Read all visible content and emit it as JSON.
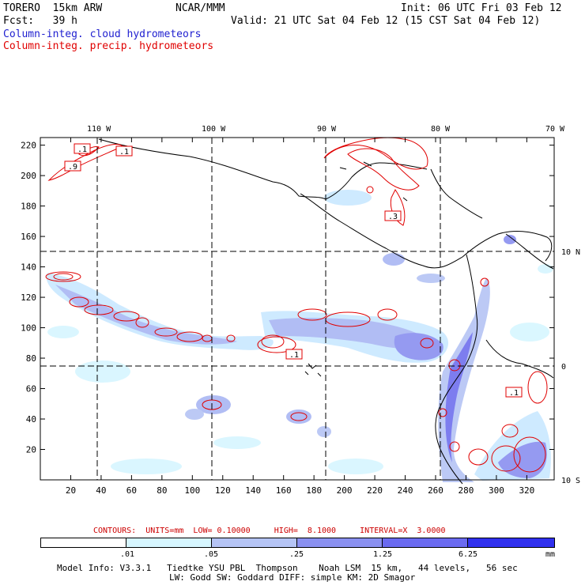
{
  "header": {
    "model": "TORERO  15km ARW",
    "org": "NCAR/MMM",
    "init": "Init: 06 UTC Fri 03 Feb 12",
    "fcst": "Fcst:   39 h",
    "valid": "Valid: 21 UTC Sat 04 Feb 12 (15 CST Sat 04 Feb 12)",
    "field_cloud": "Column-integ. cloud hydrometeors",
    "field_precip": "Column-integ. precip. hydrometeors"
  },
  "axes": {
    "lon_labels": [
      "110 W",
      "100 W",
      "90 W",
      "80 W",
      "70 W"
    ],
    "lat_labels": [
      "10 N",
      "0",
      "10 S"
    ],
    "x_ticks": [
      "20",
      "40",
      "60",
      "80",
      "100",
      "120",
      "140",
      "160",
      "180",
      "200",
      "220",
      "240",
      "260",
      "280",
      "300",
      "320"
    ],
    "y_ticks": [
      "20",
      "40",
      "60",
      "80",
      "100",
      "120",
      "140",
      "160",
      "180",
      "200",
      "220"
    ]
  },
  "contour_labels": [
    ".1",
    ".1",
    ".9",
    ".3",
    ".1",
    ".1"
  ],
  "contour_info": "CONTOURS:  UNITS=mm  LOW= 0.10000     HIGH=  8.1000     INTERVAL=X  3.0000",
  "colorbar": {
    "labels": [
      ".01",
      ".05",
      ".25",
      "1.25",
      "6.25",
      "mm"
    ],
    "colors": [
      "#ffffff",
      "#d6f6ff",
      "#b5c4f5",
      "#8a90f0",
      "#6a6af0",
      "#3030ee"
    ]
  },
  "footer": {
    "line1": "Model Info: V3.3.1   Tiedtke YSU PBL  Thompson    Noah LSM  15 km,   44 levels,   56 sec",
    "line2": "LW: Godd SW: Goddard DIFF: simple KM: 2D Smagor"
  }
}
